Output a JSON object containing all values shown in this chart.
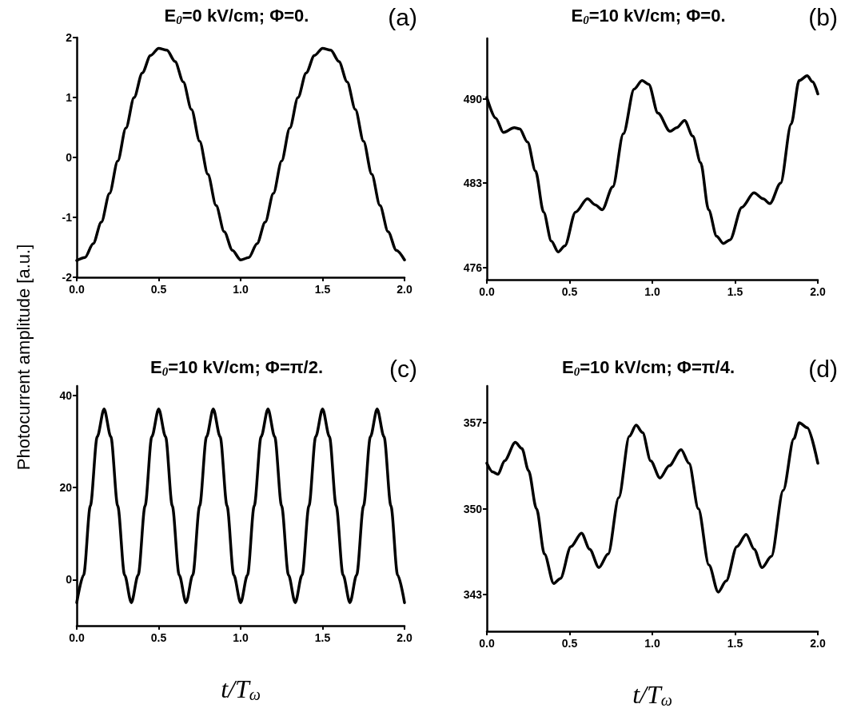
{
  "chart_data": [
    {
      "type": "line",
      "title": "E$_{0}$=0 kV/cm; Φ=0.",
      "ylabel": "Photocurrent amplitude [a.u.]",
      "annotations": [
        "(a)"
      ],
      "marker": "none",
      "line_style": "solid",
      "xlim": [
        0,
        2
      ],
      "xticks": [
        {
          "value": 0,
          "label": "0.0"
        },
        {
          "value": 0.5,
          "label": "0.5"
        },
        {
          "value": 1,
          "label": "1.0"
        },
        {
          "value": 1.5,
          "label": "1.5"
        },
        {
          "value": 2,
          "label": "2.0"
        }
      ],
      "ylim": [
        -2,
        2
      ],
      "yticks": [
        -2,
        -1,
        0,
        1,
        2
      ],
      "x": [
        0,
        0.05,
        0.1,
        0.15,
        0.2,
        0.25,
        0.3,
        0.35,
        0.4,
        0.45,
        0.5,
        0.55,
        0.6,
        0.65,
        0.7,
        0.75,
        0.8,
        0.85,
        0.9,
        0.95,
        1,
        1.05,
        1.1,
        1.15,
        1.2,
        1.25,
        1.3,
        1.35,
        1.4,
        1.45,
        1.5,
        1.55,
        1.6,
        1.65,
        1.7,
        1.75,
        1.8,
        1.85,
        1.9,
        1.95,
        2
      ],
      "series": [
        {
          "color": "#000000",
          "values": [
            -1.72,
            -1.67,
            -1.44,
            -1.08,
            -0.6,
            -0.06,
            0.49,
            1.0,
            1.41,
            1.7,
            1.82,
            1.79,
            1.6,
            1.26,
            0.8,
            0.27,
            -0.28,
            -0.8,
            -1.24,
            -1.55,
            -1.71,
            -1.67,
            -1.44,
            -1.08,
            -0.6,
            -0.06,
            0.49,
            1.0,
            1.41,
            1.7,
            1.82,
            1.79,
            1.6,
            1.26,
            0.8,
            0.27,
            -0.28,
            -0.8,
            -1.24,
            -1.55,
            -1.71
          ]
        }
      ]
    },
    {
      "type": "line",
      "title": "E$_{0}$=10 kV/cm; Φ=0.",
      "annotations": [
        "(b)"
      ],
      "marker": "none",
      "line_style": "solid",
      "xlim": [
        0,
        2
      ],
      "xticks": [
        {
          "value": 0,
          "label": "0.0"
        },
        {
          "value": 0.5,
          "label": "0.5"
        },
        {
          "value": 1,
          "label": "1.0"
        },
        {
          "value": 1.5,
          "label": "1.5"
        },
        {
          "value": 2,
          "label": "2.0"
        }
      ],
      "ylim": [
        475,
        495
      ],
      "yticks": [
        476,
        483,
        490
      ],
      "x": [
        0,
        0.053,
        0.1,
        0.166,
        0.198,
        0.246,
        0.294,
        0.343,
        0.39,
        0.431,
        0.471,
        0.536,
        0.608,
        0.656,
        0.697,
        0.761,
        0.825,
        0.89,
        0.938,
        0.978,
        1.034,
        1.107,
        1.147,
        1.195,
        1.244,
        1.292,
        1.34,
        1.389,
        1.429,
        1.469,
        1.541,
        1.614,
        1.67,
        1.71,
        1.775,
        1.839,
        1.887,
        1.936,
        1.968,
        2
      ],
      "series": [
        {
          "color": "#000000",
          "values": [
            490.1,
            488.4,
            487.2,
            487.6,
            487.5,
            486.4,
            484.0,
            480.6,
            478.2,
            477.3,
            477.8,
            480.6,
            481.7,
            481.2,
            480.8,
            482.7,
            487.1,
            490.8,
            491.5,
            491.2,
            488.8,
            487.3,
            487.6,
            488.2,
            486.9,
            484.7,
            480.8,
            478.6,
            478.0,
            478.3,
            481.0,
            482.2,
            481.7,
            481.3,
            483.0,
            487.9,
            491.5,
            491.9,
            491.4,
            490.4
          ]
        }
      ]
    },
    {
      "type": "line",
      "title": "E$_{0}$=10 kV/cm; Φ=π/2.",
      "xlabel": "t/T$_{ω}$",
      "annotations": [
        "(c)"
      ],
      "marker": "none",
      "line_style": "solid",
      "xlim": [
        0,
        2
      ],
      "xticks": [
        {
          "value": 0,
          "label": "0.0"
        },
        {
          "value": 0.5,
          "label": "0.5"
        },
        {
          "value": 1,
          "label": "1.0"
        },
        {
          "value": 1.5,
          "label": "1.5"
        },
        {
          "value": 2,
          "label": "2.0"
        }
      ],
      "ylim": [
        -10,
        42
      ],
      "yticks": [
        0,
        20,
        40
      ],
      "x": [
        0,
        0.042,
        0.083,
        0.125,
        0.167,
        0.208,
        0.25,
        0.292,
        0.333,
        0.375,
        0.417,
        0.458,
        0.5,
        0.542,
        0.583,
        0.625,
        0.667,
        0.708,
        0.75,
        0.792,
        0.833,
        0.875,
        0.917,
        0.958,
        1,
        1.042,
        1.083,
        1.125,
        1.167,
        1.208,
        1.25,
        1.292,
        1.333,
        1.375,
        1.417,
        1.458,
        1.5,
        1.542,
        1.583,
        1.625,
        1.667,
        1.708,
        1.75,
        1.792,
        1.833,
        1.875,
        1.917,
        1.958,
        2
      ],
      "series": [
        {
          "color": "#000000",
          "values": [
            -5,
            1,
            16,
            31,
            37,
            31,
            16,
            1,
            -5,
            1,
            16,
            31,
            37,
            31,
            16,
            1,
            -5,
            1,
            16,
            31,
            37,
            31,
            16,
            1,
            -5,
            1,
            16,
            31,
            37,
            31,
            16,
            1,
            -5,
            1,
            16,
            31,
            37,
            31,
            16,
            1,
            -5,
            1,
            16,
            31,
            37,
            31,
            16,
            1,
            -5
          ]
        }
      ]
    },
    {
      "type": "line",
      "title": "E$_{0}$=10 kV/cm; Φ=π/4.",
      "xlabel": "t/T$_{ω}$",
      "annotations": [
        "(d)"
      ],
      "marker": "none",
      "line_style": "solid",
      "xlim": [
        0,
        2
      ],
      "xticks": [
        {
          "value": 0,
          "label": "0.0"
        },
        {
          "value": 0.5,
          "label": "0.5"
        },
        {
          "value": 1,
          "label": "1.0"
        },
        {
          "value": 1.5,
          "label": "1.5"
        },
        {
          "value": 2,
          "label": "2.0"
        }
      ],
      "ylim": [
        340,
        360
      ],
      "yticks": [
        343,
        350,
        357
      ],
      "x": [
        0,
        0.035,
        0.067,
        0.107,
        0.172,
        0.212,
        0.252,
        0.3,
        0.348,
        0.404,
        0.444,
        0.508,
        0.572,
        0.621,
        0.677,
        0.733,
        0.797,
        0.861,
        0.902,
        0.941,
        0.99,
        1.046,
        1.102,
        1.174,
        1.222,
        1.278,
        1.342,
        1.398,
        1.446,
        1.511,
        1.567,
        1.615,
        1.663,
        1.719,
        1.791,
        1.855,
        1.888,
        1.936,
        2
      ],
      "series": [
        {
          "color": "#000000",
          "values": [
            353.7,
            353.0,
            352.8,
            353.9,
            355.4,
            354.9,
            353.1,
            350.0,
            346.3,
            343.9,
            344.3,
            346.9,
            348.0,
            346.7,
            345.2,
            346.3,
            350.9,
            355.9,
            356.8,
            356.2,
            353.9,
            352.5,
            353.5,
            354.8,
            353.7,
            350.0,
            345.4,
            343.2,
            344.1,
            346.9,
            347.9,
            346.7,
            345.2,
            346.1,
            351.5,
            355.7,
            357.0,
            356.6,
            353.7
          ]
        }
      ]
    }
  ]
}
